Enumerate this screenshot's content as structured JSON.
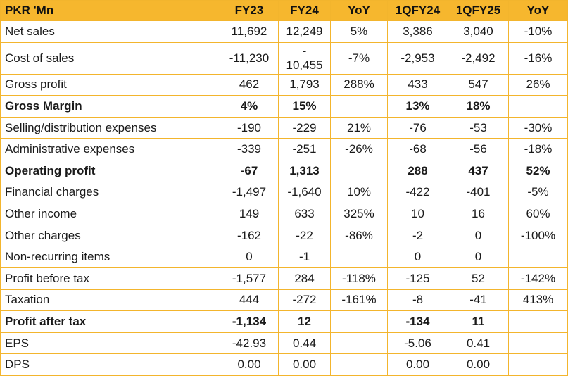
{
  "table": {
    "headers": [
      "PKR 'Mn",
      "FY23",
      "FY24",
      "YoY",
      "1QFY24",
      "1QFY25",
      "YoY"
    ],
    "rows": [
      {
        "label": "Net sales",
        "bold": false,
        "cells": [
          "11,692",
          "12,249",
          "5%",
          "3,386",
          "3,040",
          "-10%"
        ]
      },
      {
        "label": "Cost of sales",
        "bold": false,
        "tall": true,
        "cells": [
          "-11,230",
          "-\n10,455",
          "-7%",
          "-2,953",
          "-2,492",
          "-16%"
        ]
      },
      {
        "label": "Gross profit",
        "bold": false,
        "cells": [
          "462",
          "1,793",
          "288%",
          "433",
          "547",
          "26%"
        ]
      },
      {
        "label": "Gross Margin",
        "bold": true,
        "cells": [
          "4%",
          "15%",
          "",
          "13%",
          "18%",
          ""
        ]
      },
      {
        "label": "Selling/distribution expenses",
        "bold": false,
        "cells": [
          "-190",
          "-229",
          "21%",
          "-76",
          "-53",
          "-30%"
        ]
      },
      {
        "label": "Administrative expenses",
        "bold": false,
        "cells": [
          "-339",
          "-251",
          "-26%",
          "-68",
          "-56",
          "-18%"
        ]
      },
      {
        "label": "Operating profit",
        "bold": true,
        "cells": [
          "-67",
          "1,313",
          "",
          "288",
          "437",
          "52%"
        ]
      },
      {
        "label": "Financial charges",
        "bold": false,
        "cells": [
          "-1,497",
          "-1,640",
          "10%",
          "-422",
          "-401",
          "-5%"
        ]
      },
      {
        "label": "Other income",
        "bold": false,
        "cells": [
          "149",
          "633",
          "325%",
          "10",
          "16",
          "60%"
        ]
      },
      {
        "label": "Other charges",
        "bold": false,
        "cells": [
          "-162",
          "-22",
          "-86%",
          "-2",
          "0",
          "-100%"
        ]
      },
      {
        "label": "Non-recurring items",
        "bold": false,
        "cells": [
          "0",
          "-1",
          "",
          "0",
          "0",
          ""
        ]
      },
      {
        "label": "Profit before tax",
        "bold": false,
        "cells": [
          "-1,577",
          "284",
          "-118%",
          "-125",
          "52",
          "-142%"
        ]
      },
      {
        "label": "Taxation",
        "bold": false,
        "cells": [
          "444",
          "-272",
          "-161%",
          "-8",
          "-41",
          "413%"
        ]
      },
      {
        "label": "Profit after tax",
        "bold": true,
        "cells": [
          "-1,134",
          "12",
          "",
          "-134",
          "11",
          ""
        ]
      },
      {
        "label": "EPS",
        "bold": false,
        "cells": [
          "-42.93",
          "0.44",
          "",
          "-5.06",
          "0.41",
          ""
        ]
      },
      {
        "label": "DPS",
        "bold": false,
        "cells": [
          "0.00",
          "0.00",
          "",
          "0.00",
          "0.00",
          ""
        ]
      }
    ]
  },
  "colors": {
    "header_background": "#f6b72e",
    "border": "#f3b52d"
  }
}
